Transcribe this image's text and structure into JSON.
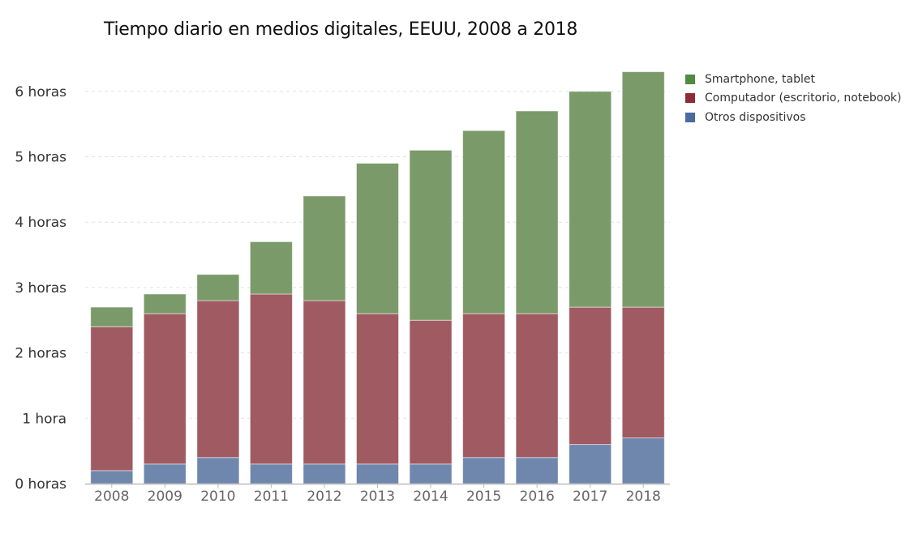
{
  "chart_data": {
    "type": "bar",
    "stacked": true,
    "title": "Tiempo diario en medios digitales, EEUU, 2008 a 2018",
    "xlabel": "",
    "ylabel": "",
    "ylim": [
      0,
      6.3
    ],
    "yticks": [
      0,
      1,
      2,
      3,
      4,
      5,
      6
    ],
    "ytick_labels": [
      "0 horas",
      "1 hora",
      "2 horas",
      "3 horas",
      "4 horas",
      "5 horas",
      "6 horas"
    ],
    "grid": true,
    "legend_position": "top-right",
    "categories": [
      "2008",
      "2009",
      "2010",
      "2011",
      "2012",
      "2013",
      "2014",
      "2015",
      "2016",
      "2017",
      "2018"
    ],
    "series": [
      {
        "name": "Otros dispositivos",
        "color": "#6f86ad",
        "values": [
          0.2,
          0.3,
          0.4,
          0.3,
          0.3,
          0.3,
          0.3,
          0.4,
          0.4,
          0.6,
          0.7
        ]
      },
      {
        "name": "Computador (escritorio, notebook)",
        "color": "#a05a61",
        "values": [
          2.2,
          2.3,
          2.4,
          2.6,
          2.5,
          2.3,
          2.2,
          2.2,
          2.2,
          2.1,
          2.0
        ]
      },
      {
        "name": "Smartphone, tablet",
        "color": "#7a9a6a",
        "values": [
          0.3,
          0.3,
          0.4,
          0.8,
          1.6,
          2.3,
          2.6,
          2.8,
          3.1,
          3.3,
          3.6
        ]
      }
    ],
    "legend": [
      {
        "label": "Smartphone, tablet",
        "color": "#4f8a3f"
      },
      {
        "label": "Computador (escritorio, notebook)",
        "color": "#8b2e36"
      },
      {
        "label": "Otros dispositivos",
        "color": "#4a6aa0"
      }
    ]
  }
}
